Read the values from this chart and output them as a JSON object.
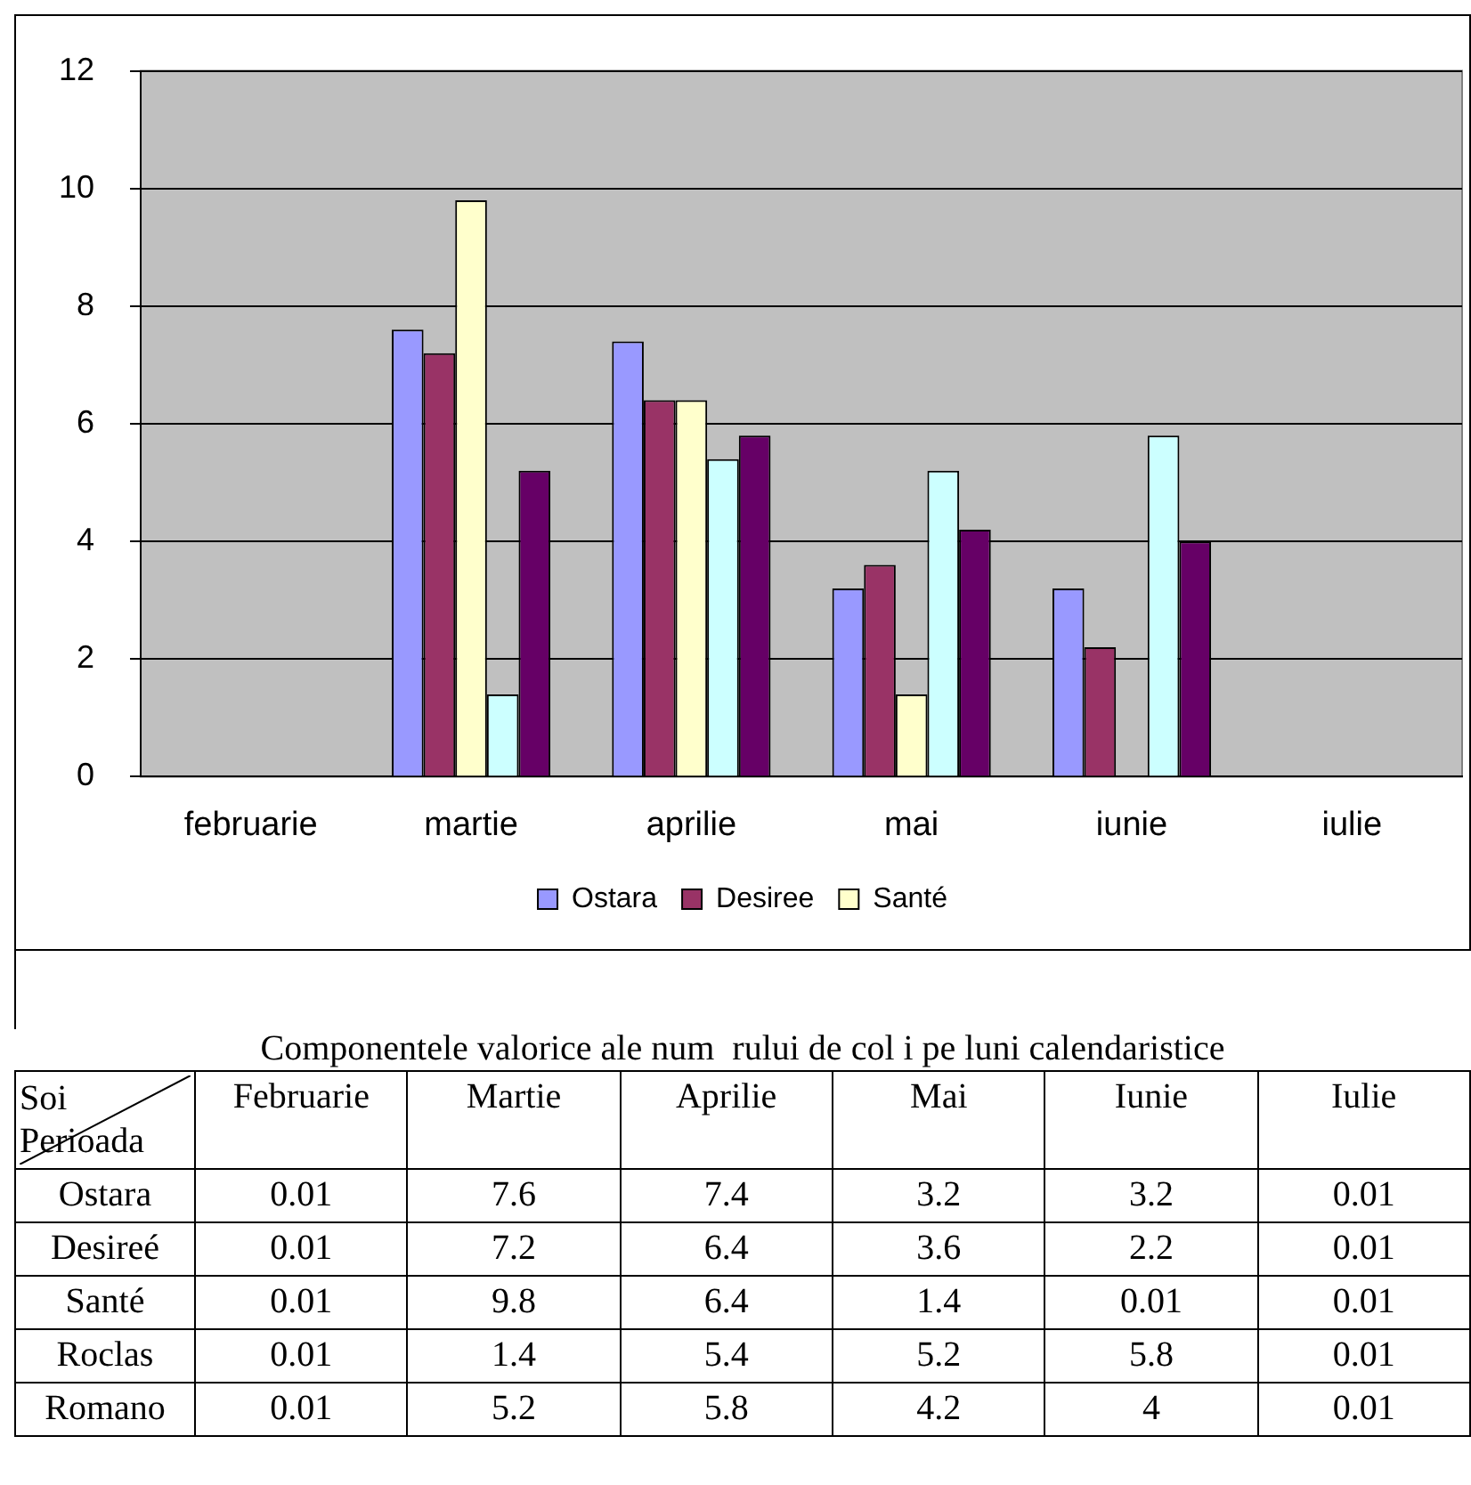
{
  "chart_data": {
    "type": "bar",
    "categories": [
      "februarie",
      "martie",
      "aprilie",
      "mai",
      "iunie",
      "iulie"
    ],
    "series": [
      {
        "name": "Ostara",
        "color": "#9999ff",
        "values": [
          0.01,
          7.6,
          7.4,
          3.2,
          3.2,
          0.01
        ]
      },
      {
        "name": "Desiree",
        "color": "#993366",
        "values": [
          0.01,
          7.2,
          6.4,
          3.6,
          2.2,
          0.01
        ]
      },
      {
        "name": "Santé",
        "color": "#ffffcc",
        "values": [
          0.01,
          9.8,
          6.4,
          1.4,
          0.01,
          0.01
        ]
      },
      {
        "color": "#ccffff",
        "values": [
          0.01,
          1.4,
          5.4,
          5.2,
          5.8,
          0.01
        ]
      },
      {
        "color": "#660066",
        "values": [
          0.01,
          5.2,
          5.8,
          4.2,
          4,
          0.01
        ]
      }
    ],
    "ylim": [
      0,
      12
    ],
    "yticks": [
      0,
      2,
      4,
      6,
      8,
      10,
      12
    ],
    "grid": "y",
    "legend": "bottom",
    "data_labels": true,
    "annotations": [
      "Componentele valorice ale num  rului de col i pe luni calendaristice",
      "Soi",
      "Perioada",
      "Februarie",
      "Martie",
      "Aprilie",
      "Mai",
      "Iunie",
      "Iulie",
      "Ostara",
      "Desireé",
      "Santé",
      "Roclas",
      "Romano"
    ]
  }
}
